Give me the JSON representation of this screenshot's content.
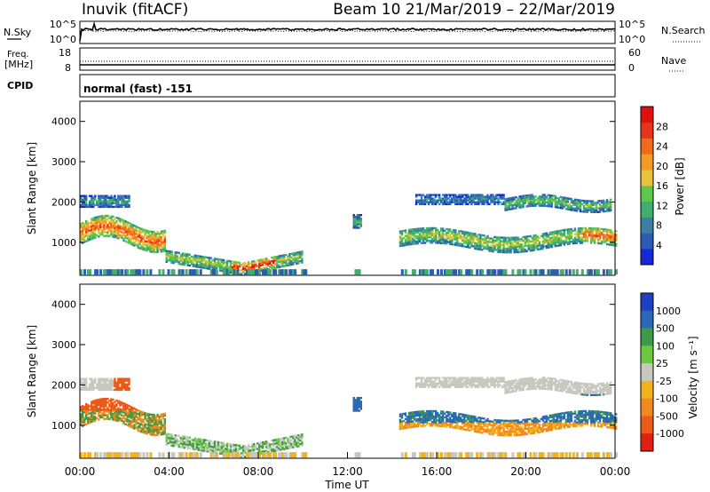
{
  "header": {
    "title": "Inuvik (fitACF)",
    "beam_range": "Beam 10  21/Mar/2019 – 22/Mar/2019"
  },
  "status_panels": {
    "nsky_label": "N.Sky",
    "nsearch_label": "N.Search",
    "nsky_ticks": [
      "10^5",
      "10^0"
    ],
    "nsearch_ticks": [
      "10^5",
      "10^0"
    ],
    "freq_label_1": "Freq.",
    "freq_label_2": "[MHz]",
    "freq_ticks": [
      "18",
      "8"
    ],
    "nave_label": "Nave",
    "nave_ticks": [
      "60",
      "0"
    ],
    "cpid_label": "CPID",
    "cpid_value": "normal (fast) -151"
  },
  "chart_data": [
    {
      "type": "heatmap",
      "name": "power",
      "ylabel": "Slant Range [km]",
      "ylim": [
        180,
        4500
      ],
      "yticks": [
        "1000",
        "2000",
        "3000",
        "4000"
      ],
      "xlim": [
        0,
        24
      ],
      "colorbar_label": "Power [dB]",
      "colorbar_ticks": [
        "4",
        "8",
        "12",
        "16",
        "20",
        "24",
        "28"
      ],
      "colorbar_range": [
        0,
        32
      ],
      "colorbar_colors": [
        "#1428d8",
        "#2a5cb4",
        "#3b7ea6",
        "#3fae6f",
        "#5fc84b",
        "#e8c23a",
        "#f29b27",
        "#f06a1c",
        "#e8341c",
        "#e01010"
      ]
    },
    {
      "type": "heatmap",
      "name": "velocity",
      "ylabel": "Slant Range [km]",
      "ylim": [
        180,
        4500
      ],
      "yticks": [
        "1000",
        "2000",
        "3000",
        "4000"
      ],
      "xlim": [
        0,
        24
      ],
      "xticks": [
        "00:00",
        "04:00",
        "08:00",
        "12:00",
        "16:00",
        "20:00",
        "00:00"
      ],
      "xlabel": "Time UT",
      "colorbar_label": "Velocity [m s⁻¹]",
      "colorbar_ticks": [
        "1000",
        "500",
        "100",
        "25",
        "-25",
        "-100",
        "-500",
        "-1000"
      ],
      "colorbar_colors": [
        "#1d3fc0",
        "#2b68b8",
        "#3d9a4a",
        "#6cc83e",
        "#c8c8c0",
        "#f2b21e",
        "#ef8a1e",
        "#ea5a18",
        "#e02010"
      ]
    }
  ]
}
